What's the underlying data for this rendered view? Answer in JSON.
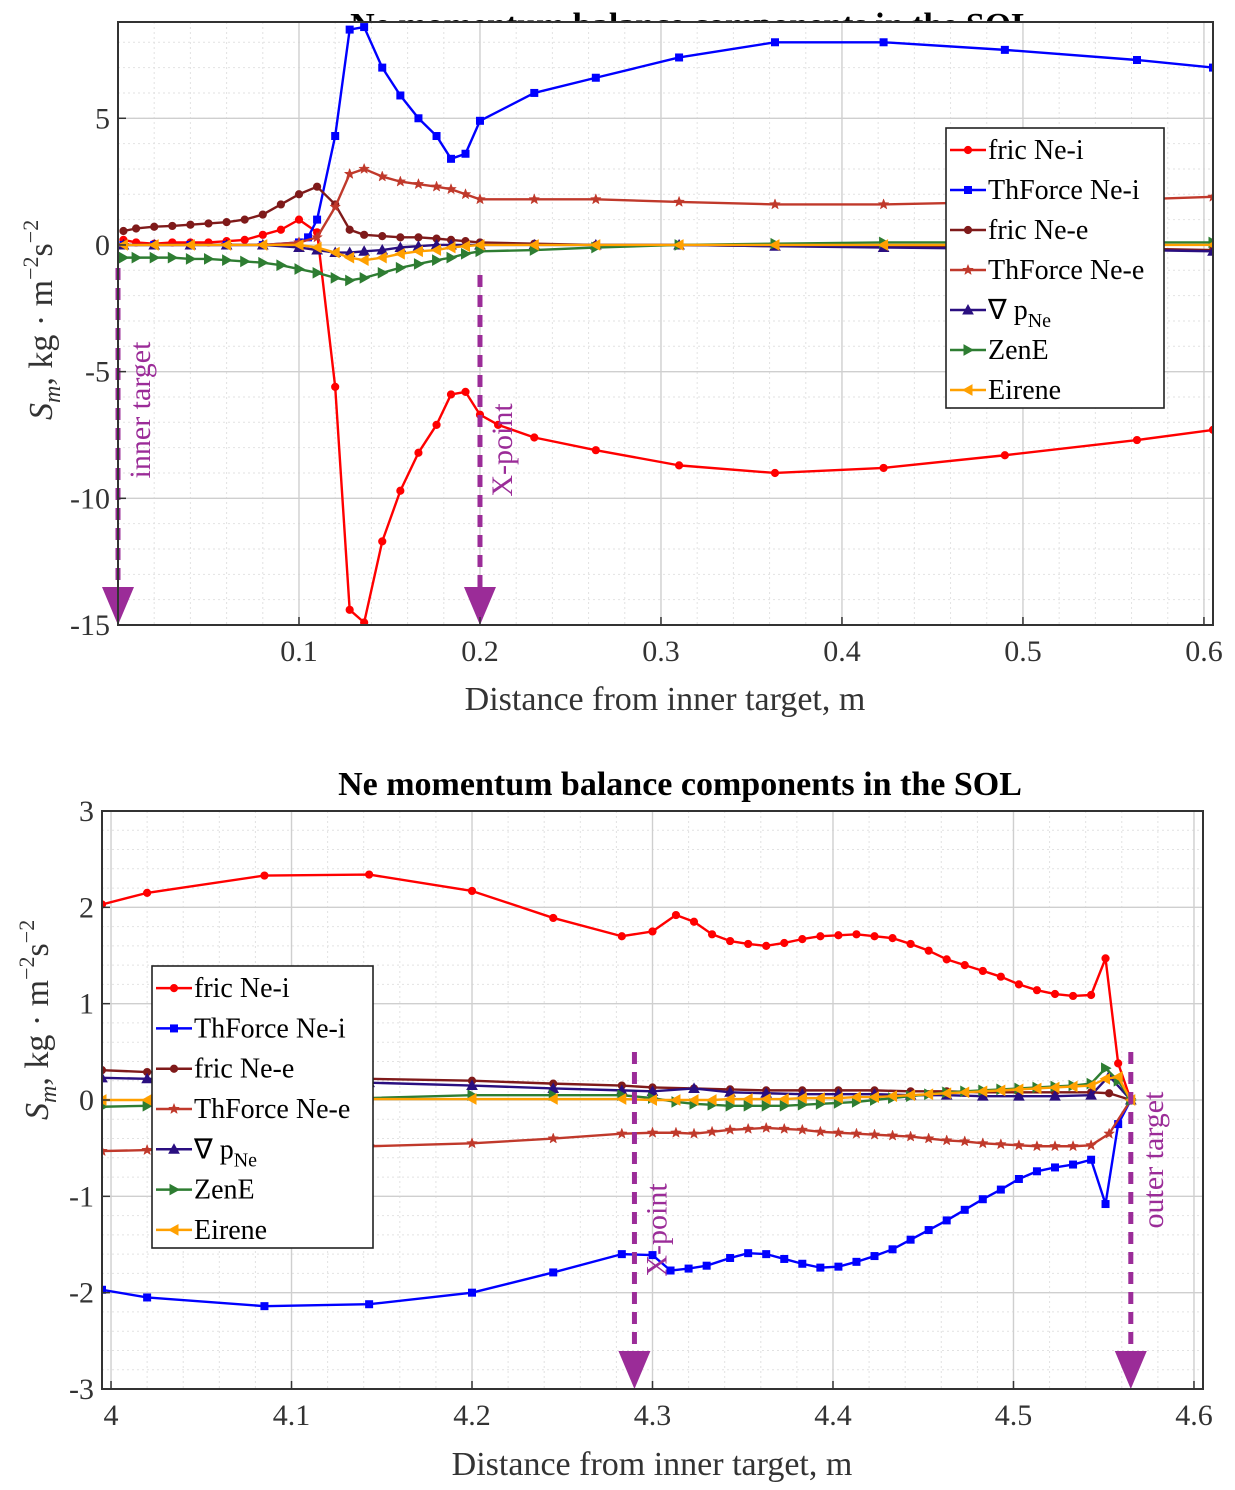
{
  "chart_data": [
    {
      "type": "line",
      "title": "Ne momentum balance components in the SOL",
      "xlabel": "Distance from inner target,  m",
      "ylabel_parts": {
        "S": "S",
        "m": "m",
        "unit": ",  kg · m",
        "exp1": "−2",
        "s": "s",
        "exp2": "−2"
      },
      "xlim": [
        0.0,
        0.605
      ],
      "ylim": [
        -15,
        8.8
      ],
      "xticks": [
        0.1,
        0.2,
        0.3,
        0.4,
        0.5,
        0.6
      ],
      "xtick_labels": [
        "0.1",
        "0.2",
        "0.3",
        "0.4",
        "0.5",
        "0.6"
      ],
      "yticks": [
        5,
        0,
        -5,
        -10,
        -15
      ],
      "ytick_labels": [
        "5",
        "0",
        "-5",
        "-10",
        "-15"
      ],
      "grid": true,
      "legend_position": "upper-right",
      "series": [
        {
          "name": "fric Ne-i",
          "color": "#ff0000",
          "marker": "circle",
          "x": [
            0.003,
            0.01,
            0.02,
            0.03,
            0.04,
            0.05,
            0.06,
            0.07,
            0.08,
            0.09,
            0.1,
            0.11,
            0.12,
            0.128,
            0.136,
            0.146,
            0.156,
            0.166,
            0.176,
            0.184,
            0.192,
            0.2,
            0.21,
            0.23,
            0.264,
            0.31,
            0.363,
            0.423,
            0.49,
            0.563,
            0.605
          ],
          "y": [
            0.2,
            0.1,
            0.05,
            0.1,
            0.1,
            0.1,
            0.15,
            0.2,
            0.4,
            0.6,
            1.0,
            0.5,
            -5.6,
            -14.4,
            -14.9,
            -11.7,
            -9.7,
            -8.2,
            -7.1,
            -5.9,
            -5.8,
            -6.7,
            -7.1,
            -7.6,
            -8.1,
            -8.7,
            -9.0,
            -8.8,
            -8.3,
            -7.7,
            -7.3
          ]
        },
        {
          "name": "ThForce Ne-i",
          "color": "#0000ff",
          "marker": "square",
          "x": [
            0.003,
            0.02,
            0.04,
            0.06,
            0.08,
            0.1,
            0.105,
            0.11,
            0.12,
            0.128,
            0.136,
            0.146,
            0.156,
            0.166,
            0.176,
            0.184,
            0.192,
            0.2,
            0.23,
            0.264,
            0.31,
            0.363,
            0.423,
            0.49,
            0.563,
            0.605
          ],
          "y": [
            0,
            0,
            0,
            0,
            0,
            0.1,
            0.3,
            1.0,
            4.3,
            8.5,
            8.6,
            7.0,
            5.9,
            5.0,
            4.3,
            3.4,
            3.6,
            4.9,
            6.0,
            6.6,
            7.4,
            8.0,
            8.0,
            7.7,
            7.3,
            7.0
          ]
        },
        {
          "name": "fric Ne-e",
          "color": "#7f1a1a",
          "marker": "circle",
          "x": [
            0.003,
            0.01,
            0.02,
            0.03,
            0.04,
            0.05,
            0.06,
            0.07,
            0.08,
            0.09,
            0.1,
            0.11,
            0.12,
            0.128,
            0.136,
            0.146,
            0.156,
            0.166,
            0.176,
            0.184,
            0.192,
            0.2,
            0.23,
            0.264,
            0.31,
            0.363,
            0.423,
            0.49,
            0.563,
            0.605
          ],
          "y": [
            0.55,
            0.65,
            0.72,
            0.75,
            0.8,
            0.85,
            0.9,
            1.0,
            1.2,
            1.6,
            2.0,
            2.3,
            1.6,
            0.6,
            0.4,
            0.35,
            0.3,
            0.3,
            0.25,
            0.2,
            0.15,
            0.1,
            0.05,
            0.0,
            0.0,
            -0.05,
            -0.05,
            -0.1,
            -0.15,
            -0.2
          ]
        },
        {
          "name": "ThForce Ne-e",
          "color": "#c0392b",
          "marker": "star",
          "x": [
            0.003,
            0.02,
            0.04,
            0.06,
            0.08,
            0.1,
            0.11,
            0.12,
            0.128,
            0.136,
            0.146,
            0.156,
            0.166,
            0.176,
            0.184,
            0.192,
            0.2,
            0.23,
            0.264,
            0.31,
            0.363,
            0.423,
            0.49,
            0.563,
            0.605
          ],
          "y": [
            0,
            0,
            0,
            0,
            0,
            0.1,
            0.3,
            1.5,
            2.8,
            3.0,
            2.7,
            2.5,
            2.4,
            2.3,
            2.2,
            2.0,
            1.8,
            1.8,
            1.8,
            1.7,
            1.6,
            1.6,
            1.7,
            1.8,
            1.9
          ]
        },
        {
          "name": "∇ p_Ne",
          "color": "#2a0f80",
          "marker": "triangle-up",
          "x": [
            0.003,
            0.02,
            0.04,
            0.06,
            0.08,
            0.1,
            0.11,
            0.12,
            0.128,
            0.136,
            0.146,
            0.156,
            0.166,
            0.176,
            0.184,
            0.2,
            0.23,
            0.264,
            0.31,
            0.363,
            0.423,
            0.49,
            0.563,
            0.605
          ],
          "y": [
            0,
            0,
            0,
            0,
            0,
            -0.1,
            -0.2,
            -0.3,
            -0.3,
            -0.25,
            -0.2,
            -0.1,
            -0.05,
            0,
            0,
            0,
            0,
            0,
            0,
            -0.05,
            -0.1,
            -0.15,
            -0.2,
            -0.25
          ]
        },
        {
          "name": "ZenE",
          "color": "#2e7d32",
          "marker": "triangle-right",
          "x": [
            0.003,
            0.01,
            0.02,
            0.03,
            0.04,
            0.05,
            0.06,
            0.07,
            0.08,
            0.09,
            0.1,
            0.11,
            0.12,
            0.128,
            0.136,
            0.146,
            0.156,
            0.166,
            0.176,
            0.184,
            0.192,
            0.2,
            0.23,
            0.264,
            0.31,
            0.363,
            0.423,
            0.49,
            0.563,
            0.605
          ],
          "y": [
            -0.5,
            -0.5,
            -0.5,
            -0.5,
            -0.55,
            -0.55,
            -0.6,
            -0.65,
            -0.7,
            -0.8,
            -0.95,
            -1.1,
            -1.3,
            -1.4,
            -1.3,
            -1.1,
            -0.9,
            -0.75,
            -0.6,
            -0.5,
            -0.35,
            -0.25,
            -0.2,
            -0.1,
            0,
            0.05,
            0.1,
            0.1,
            0.1,
            0.1
          ]
        },
        {
          "name": "Eirene",
          "color": "#ffa000",
          "marker": "triangle-left",
          "x": [
            0.003,
            0.02,
            0.04,
            0.06,
            0.08,
            0.1,
            0.11,
            0.12,
            0.128,
            0.136,
            0.146,
            0.156,
            0.166,
            0.176,
            0.184,
            0.192,
            0.2,
            0.23,
            0.264,
            0.31,
            0.363,
            0.423,
            0.49,
            0.563,
            0.605
          ],
          "y": [
            0,
            0,
            0,
            0,
            0,
            0,
            -0.1,
            -0.3,
            -0.5,
            -0.6,
            -0.5,
            -0.35,
            -0.25,
            -0.2,
            -0.1,
            -0.05,
            0,
            0,
            0,
            0,
            0,
            0,
            0,
            0,
            0
          ]
        }
      ],
      "annotations": [
        {
          "text": "inner target",
          "x": 0.0
        },
        {
          "text": "X-point",
          "x": 0.2
        }
      ]
    },
    {
      "type": "line",
      "title": "Ne momentum balance components in the SOL",
      "xlabel": "Distance from inner target,  m",
      "ylabel_parts": {
        "S": "S",
        "m": "m",
        "unit": ",  kg · m",
        "exp1": "−2",
        "s": "s",
        "exp2": "−2"
      },
      "xlim": [
        3.995,
        4.605
      ],
      "ylim": [
        -3,
        3
      ],
      "xticks": [
        4.0,
        4.1,
        4.2,
        4.3,
        4.4,
        4.5,
        4.6
      ],
      "xtick_labels": [
        "4",
        "4.1",
        "4.2",
        "4.3",
        "4.4",
        "4.5",
        "4.6"
      ],
      "yticks": [
        3,
        2,
        1,
        0,
        -1,
        -2,
        -3
      ],
      "ytick_labels": [
        "3",
        "2",
        "1",
        "0",
        "-1",
        "-2",
        "-3"
      ],
      "grid": true,
      "legend_position": "middle-left",
      "series": [
        {
          "name": "fric Ne-i",
          "color": "#ff0000",
          "marker": "circle",
          "x": [
            3.995,
            4.02,
            4.085,
            4.143,
            4.2,
            4.245,
            4.283,
            4.3,
            4.313,
            4.323,
            4.333,
            4.343,
            4.353,
            4.363,
            4.373,
            4.383,
            4.393,
            4.403,
            4.413,
            4.423,
            4.433,
            4.443,
            4.453,
            4.463,
            4.473,
            4.483,
            4.493,
            4.503,
            4.513,
            4.523,
            4.533,
            4.543,
            4.551,
            4.558,
            4.565
          ],
          "y": [
            2.03,
            2.15,
            2.33,
            2.34,
            2.17,
            1.89,
            1.7,
            1.75,
            1.92,
            1.85,
            1.72,
            1.65,
            1.62,
            1.6,
            1.63,
            1.67,
            1.7,
            1.71,
            1.72,
            1.7,
            1.68,
            1.62,
            1.55,
            1.46,
            1.4,
            1.34,
            1.28,
            1.2,
            1.14,
            1.1,
            1.08,
            1.09,
            1.47,
            0.38,
            0.0
          ]
        },
        {
          "name": "ThForce Ne-i",
          "color": "#0000ff",
          "marker": "square",
          "x": [
            3.995,
            4.02,
            4.085,
            4.143,
            4.2,
            4.245,
            4.283,
            4.3,
            4.31,
            4.32,
            4.33,
            4.343,
            4.353,
            4.363,
            4.373,
            4.383,
            4.393,
            4.403,
            4.413,
            4.423,
            4.433,
            4.443,
            4.453,
            4.463,
            4.473,
            4.483,
            4.493,
            4.503,
            4.513,
            4.523,
            4.533,
            4.543,
            4.551,
            4.558,
            4.565
          ],
          "y": [
            -1.97,
            -2.05,
            -2.14,
            -2.12,
            -2.0,
            -1.79,
            -1.6,
            -1.61,
            -1.77,
            -1.75,
            -1.72,
            -1.64,
            -1.59,
            -1.6,
            -1.65,
            -1.7,
            -1.74,
            -1.73,
            -1.68,
            -1.62,
            -1.55,
            -1.45,
            -1.35,
            -1.25,
            -1.14,
            -1.03,
            -0.93,
            -0.82,
            -0.74,
            -0.7,
            -0.67,
            -0.62,
            -1.08,
            -0.25,
            0.0
          ]
        },
        {
          "name": "fric Ne-e",
          "color": "#7f1a1a",
          "marker": "circle",
          "x": [
            3.995,
            4.02,
            4.085,
            4.143,
            4.2,
            4.245,
            4.283,
            4.3,
            4.323,
            4.343,
            4.363,
            4.383,
            4.403,
            4.423,
            4.443,
            4.463,
            4.483,
            4.503,
            4.523,
            4.543,
            4.553,
            4.565
          ],
          "y": [
            0.31,
            0.29,
            0.25,
            0.22,
            0.2,
            0.17,
            0.15,
            0.13,
            0.12,
            0.11,
            0.1,
            0.1,
            0.1,
            0.1,
            0.09,
            0.09,
            0.08,
            0.08,
            0.08,
            0.08,
            0.07,
            0.0
          ]
        },
        {
          "name": "ThForce Ne-e",
          "color": "#c0392b",
          "marker": "star",
          "x": [
            3.995,
            4.02,
            4.085,
            4.143,
            4.2,
            4.245,
            4.283,
            4.3,
            4.313,
            4.323,
            4.333,
            4.343,
            4.353,
            4.363,
            4.373,
            4.383,
            4.393,
            4.403,
            4.413,
            4.423,
            4.433,
            4.443,
            4.453,
            4.463,
            4.473,
            4.483,
            4.493,
            4.503,
            4.513,
            4.523,
            4.533,
            4.543,
            4.553,
            4.565
          ],
          "y": [
            -0.53,
            -0.52,
            -0.5,
            -0.48,
            -0.45,
            -0.4,
            -0.35,
            -0.34,
            -0.34,
            -0.35,
            -0.33,
            -0.31,
            -0.3,
            -0.29,
            -0.3,
            -0.31,
            -0.33,
            -0.34,
            -0.35,
            -0.36,
            -0.37,
            -0.38,
            -0.4,
            -0.42,
            -0.43,
            -0.45,
            -0.46,
            -0.47,
            -0.48,
            -0.48,
            -0.48,
            -0.47,
            -0.35,
            0.0
          ]
        },
        {
          "name": "∇ p_Ne",
          "color": "#2a0f80",
          "marker": "triangle-up",
          "x": [
            3.995,
            4.02,
            4.085,
            4.143,
            4.2,
            4.245,
            4.283,
            4.3,
            4.323,
            4.343,
            4.363,
            4.383,
            4.403,
            4.423,
            4.443,
            4.463,
            4.483,
            4.503,
            4.523,
            4.543,
            4.553,
            4.565
          ],
          "y": [
            0.23,
            0.22,
            0.2,
            0.18,
            0.15,
            0.12,
            0.1,
            0.09,
            0.12,
            0.08,
            0.07,
            0.06,
            0.06,
            0.06,
            0.05,
            0.05,
            0.04,
            0.04,
            0.04,
            0.05,
            0.25,
            0.0
          ]
        },
        {
          "name": "ZenE",
          "color": "#2e7d32",
          "marker": "triangle-right",
          "x": [
            3.995,
            4.02,
            4.085,
            4.143,
            4.2,
            4.245,
            4.283,
            4.3,
            4.313,
            4.323,
            4.333,
            4.343,
            4.353,
            4.363,
            4.373,
            4.383,
            4.393,
            4.403,
            4.413,
            4.423,
            4.433,
            4.443,
            4.453,
            4.463,
            4.473,
            4.483,
            4.493,
            4.503,
            4.513,
            4.523,
            4.533,
            4.543,
            4.551,
            4.558,
            4.565
          ],
          "y": [
            -0.07,
            -0.06,
            -0.02,
            0.02,
            0.05,
            0.05,
            0.05,
            0.02,
            -0.02,
            -0.04,
            -0.05,
            -0.06,
            -0.06,
            -0.06,
            -0.06,
            -0.05,
            -0.04,
            -0.03,
            -0.02,
            0.0,
            0.02,
            0.04,
            0.06,
            0.08,
            0.09,
            0.1,
            0.11,
            0.12,
            0.13,
            0.14,
            0.15,
            0.17,
            0.33,
            0.2,
            0.0
          ]
        },
        {
          "name": "Eirene",
          "color": "#ffa000",
          "marker": "triangle-left",
          "x": [
            3.995,
            4.02,
            4.085,
            4.143,
            4.2,
            4.245,
            4.283,
            4.3,
            4.313,
            4.323,
            4.333,
            4.343,
            4.353,
            4.363,
            4.373,
            4.383,
            4.393,
            4.403,
            4.413,
            4.423,
            4.433,
            4.443,
            4.453,
            4.463,
            4.473,
            4.483,
            4.493,
            4.503,
            4.513,
            4.523,
            4.533,
            4.543,
            4.551,
            4.558,
            4.565
          ],
          "y": [
            0.0,
            0.0,
            0.01,
            0.01,
            0.01,
            0.01,
            0.01,
            0.0,
            0.0,
            0.0,
            0.0,
            0.01,
            0.01,
            0.01,
            0.01,
            0.02,
            0.02,
            0.02,
            0.03,
            0.03,
            0.04,
            0.05,
            0.06,
            0.07,
            0.08,
            0.09,
            0.1,
            0.11,
            0.12,
            0.13,
            0.14,
            0.15,
            0.22,
            0.24,
            0.0
          ]
        }
      ],
      "annotations": [
        {
          "text": "X-point",
          "x": 4.29
        },
        {
          "text": "outer target",
          "x": 4.565
        }
      ]
    }
  ]
}
